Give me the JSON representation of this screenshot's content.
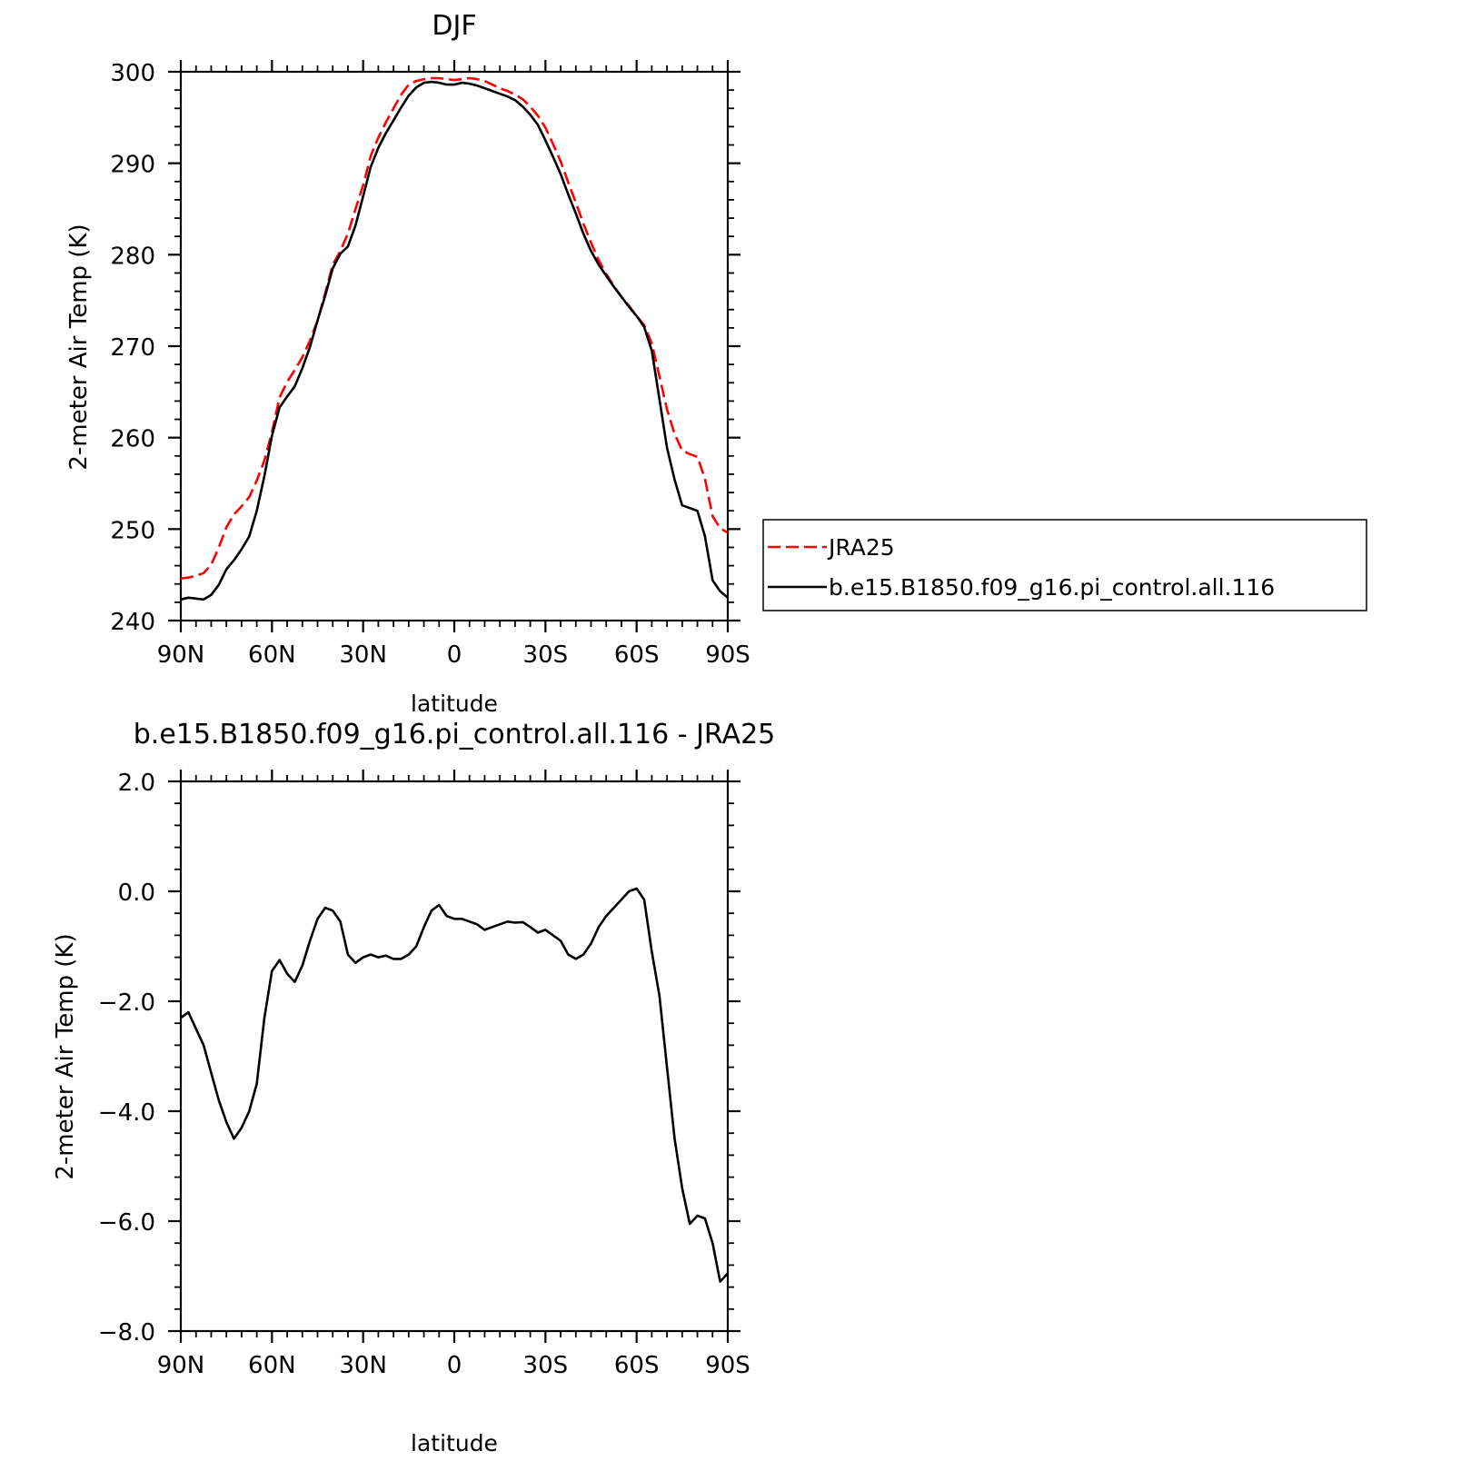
{
  "chart_data": [
    {
      "type": "line",
      "title": "DJF",
      "xlabel": "latitude",
      "ylabel": "2-meter Air Temp (K)",
      "xlim": [
        90,
        -90
      ],
      "ylim": [
        240,
        300
      ],
      "x_ticks": [
        {
          "value": 90,
          "label": "90N"
        },
        {
          "value": 60,
          "label": "60N"
        },
        {
          "value": 30,
          "label": "30N"
        },
        {
          "value": 0,
          "label": "0"
        },
        {
          "value": -30,
          "label": "30S"
        },
        {
          "value": -60,
          "label": "60S"
        },
        {
          "value": -90,
          "label": "90S"
        }
      ],
      "y_ticks": [
        {
          "value": 300,
          "label": "300"
        },
        {
          "value": 290,
          "label": "290"
        },
        {
          "value": 280,
          "label": "280"
        },
        {
          "value": 270,
          "label": "270"
        },
        {
          "value": 260,
          "label": "260"
        },
        {
          "value": 250,
          "label": "250"
        },
        {
          "value": 240,
          "label": "240"
        }
      ],
      "legend": "outside-right",
      "series": [
        {
          "name": "JRA25",
          "color": "#ff0000",
          "dash": "dashed",
          "x": [
            90,
            87.5,
            85,
            82.5,
            80,
            77.5,
            75,
            72.5,
            70,
            67.5,
            65,
            62.5,
            60,
            57.5,
            55,
            52.5,
            50,
            47.5,
            45,
            42.5,
            40,
            37.5,
            35,
            32.5,
            30,
            27.5,
            25,
            22.5,
            20,
            17.5,
            15,
            12.5,
            10,
            7.5,
            5,
            2.5,
            0,
            -2.5,
            -5,
            -7.5,
            -10,
            -12.5,
            -15,
            -17.5,
            -20,
            -22.5,
            -25,
            -27.5,
            -30,
            -32.5,
            -35,
            -37.5,
            -40,
            -42.5,
            -45,
            -47.5,
            -50,
            -52.5,
            -55,
            -57.5,
            -60,
            -62.5,
            -65,
            -67.5,
            -70,
            -72.5,
            -75,
            -77.5,
            -80,
            -82.5,
            -85,
            -87.5,
            -90
          ],
          "values": [
            244.6,
            244.7,
            244.9,
            245.2,
            246.1,
            248.0,
            250.2,
            251.6,
            252.5,
            253.5,
            255.3,
            257.5,
            260.6,
            264.4,
            266.1,
            267.4,
            268.8,
            270.6,
            272.8,
            275.8,
            278.9,
            280.4,
            282.3,
            285.0,
            287.6,
            290.8,
            292.8,
            294.5,
            296.0,
            297.5,
            298.6,
            299.0,
            299.2,
            299.3,
            299.3,
            299.2,
            299.1,
            299.2,
            299.3,
            299.2,
            299.0,
            298.6,
            298.2,
            297.9,
            297.5,
            297.0,
            296.2,
            295.2,
            293.9,
            292.1,
            290.2,
            287.9,
            285.7,
            283.4,
            281.3,
            279.4,
            277.9,
            276.6,
            275.4,
            274.4,
            273.3,
            272.3,
            270.3,
            266.7,
            263.1,
            260.4,
            258.6,
            258.2,
            257.9,
            255.5,
            251.4,
            250.1,
            249.6
          ]
        },
        {
          "name": "b.e15.B1850.f09_g16.pi_control.all.116",
          "color": "#000000",
          "dash": "solid",
          "x": [
            90,
            87.5,
            85,
            82.5,
            80,
            77.5,
            75,
            72.5,
            70,
            67.5,
            65,
            62.5,
            60,
            57.5,
            55,
            52.5,
            50,
            47.5,
            45,
            42.5,
            40,
            37.5,
            35,
            32.5,
            30,
            27.5,
            25,
            22.5,
            20,
            17.5,
            15,
            12.5,
            10,
            7.5,
            5,
            2.5,
            0,
            -2.5,
            -5,
            -7.5,
            -10,
            -12.5,
            -15,
            -17.5,
            -20,
            -22.5,
            -25,
            -27.5,
            -30,
            -32.5,
            -35,
            -37.5,
            -40,
            -42.5,
            -45,
            -47.5,
            -50,
            -52.5,
            -55,
            -57.5,
            -60,
            -62.5,
            -65,
            -67.5,
            -70,
            -72.5,
            -75,
            -77.5,
            -80,
            -82.5,
            -85,
            -87.5,
            -90
          ],
          "values": [
            242.3,
            242.5,
            242.4,
            242.3,
            242.8,
            243.9,
            245.6,
            246.6,
            247.8,
            249.2,
            252.0,
            255.8,
            260.2,
            263.3,
            264.5,
            265.6,
            267.6,
            269.9,
            272.8,
            275.5,
            278.5,
            280.1,
            280.9,
            283.2,
            286.4,
            289.6,
            291.7,
            293.3,
            294.7,
            296.1,
            297.4,
            298.3,
            298.8,
            298.9,
            298.8,
            298.6,
            298.6,
            298.8,
            298.7,
            298.5,
            298.2,
            297.9,
            297.6,
            297.3,
            296.9,
            296.2,
            295.3,
            294.2,
            292.5,
            290.7,
            288.8,
            286.6,
            284.5,
            282.3,
            280.4,
            278.9,
            277.7,
            276.5,
            275.4,
            274.3,
            273.3,
            272.1,
            269.5,
            264.2,
            258.9,
            255.4,
            252.6,
            252.3,
            252.0,
            249.2,
            244.4,
            243.2,
            242.5
          ]
        }
      ]
    },
    {
      "type": "line",
      "title": "b.e15.B1850.f09_g16.pi_control.all.116 - JRA25",
      "xlabel": "latitude",
      "ylabel": "2-meter Air Temp (K)",
      "xlim": [
        90,
        -90
      ],
      "ylim": [
        -8,
        2
      ],
      "x_ticks": [
        {
          "value": 90,
          "label": "90N"
        },
        {
          "value": 60,
          "label": "60N"
        },
        {
          "value": 30,
          "label": "30N"
        },
        {
          "value": 0,
          "label": "0"
        },
        {
          "value": -30,
          "label": "30S"
        },
        {
          "value": -60,
          "label": "60S"
        },
        {
          "value": -90,
          "label": "90S"
        }
      ],
      "y_ticks": [
        {
          "value": 2,
          "label": "2.0"
        },
        {
          "value": 0,
          "label": "0.0"
        },
        {
          "value": -2,
          "label": "-2.0"
        },
        {
          "value": -4,
          "label": "-4.0"
        },
        {
          "value": -6,
          "label": "-6.0"
        },
        {
          "value": -8,
          "label": "-8.0"
        }
      ],
      "series": [
        {
          "color": "#000000",
          "dash": "solid",
          "x": [
            90,
            87.5,
            85,
            82.5,
            80,
            77.5,
            75,
            72.5,
            70,
            67.5,
            65,
            62.5,
            60,
            57.5,
            55,
            52.5,
            50,
            47.5,
            45,
            42.5,
            40,
            37.5,
            35,
            32.5,
            30,
            27.5,
            25,
            22.5,
            20,
            17.5,
            15,
            12.5,
            10,
            7.5,
            5,
            2.5,
            0,
            -2.5,
            -5,
            -7.5,
            -10,
            -12.5,
            -15,
            -17.5,
            -20,
            -22.5,
            -25,
            -27.5,
            -30,
            -32.5,
            -35,
            -37.5,
            -40,
            -42.5,
            -45,
            -47.5,
            -50,
            -52.5,
            -55,
            -57.5,
            -60,
            -62.5,
            -65,
            -67.5,
            -70,
            -72.5,
            -75,
            -77.5,
            -80,
            -82.5,
            -85,
            -87.5,
            -90
          ],
          "values": [
            -2.3,
            -2.2,
            -2.5,
            -2.8,
            -3.3,
            -3.8,
            -4.2,
            -4.5,
            -4.3,
            -4.0,
            -3.5,
            -2.3,
            -1.45,
            -1.25,
            -1.5,
            -1.65,
            -1.35,
            -0.9,
            -0.5,
            -0.3,
            -0.35,
            -0.55,
            -1.15,
            -1.3,
            -1.2,
            -1.15,
            -1.2,
            -1.17,
            -1.23,
            -1.23,
            -1.15,
            -1.0,
            -0.65,
            -0.35,
            -0.25,
            -0.45,
            -0.5,
            -0.5,
            -0.55,
            -0.6,
            -0.7,
            -0.65,
            -0.6,
            -0.55,
            -0.57,
            -0.56,
            -0.65,
            -0.75,
            -0.7,
            -0.8,
            -0.9,
            -1.15,
            -1.23,
            -1.15,
            -0.95,
            -0.65,
            -0.45,
            -0.3,
            -0.15,
            0.0,
            0.05,
            -0.15,
            -1.1,
            -1.9,
            -3.2,
            -4.5,
            -5.4,
            -6.05,
            -5.9,
            -5.95,
            -6.4,
            -7.1,
            -6.95
          ]
        }
      ]
    }
  ]
}
